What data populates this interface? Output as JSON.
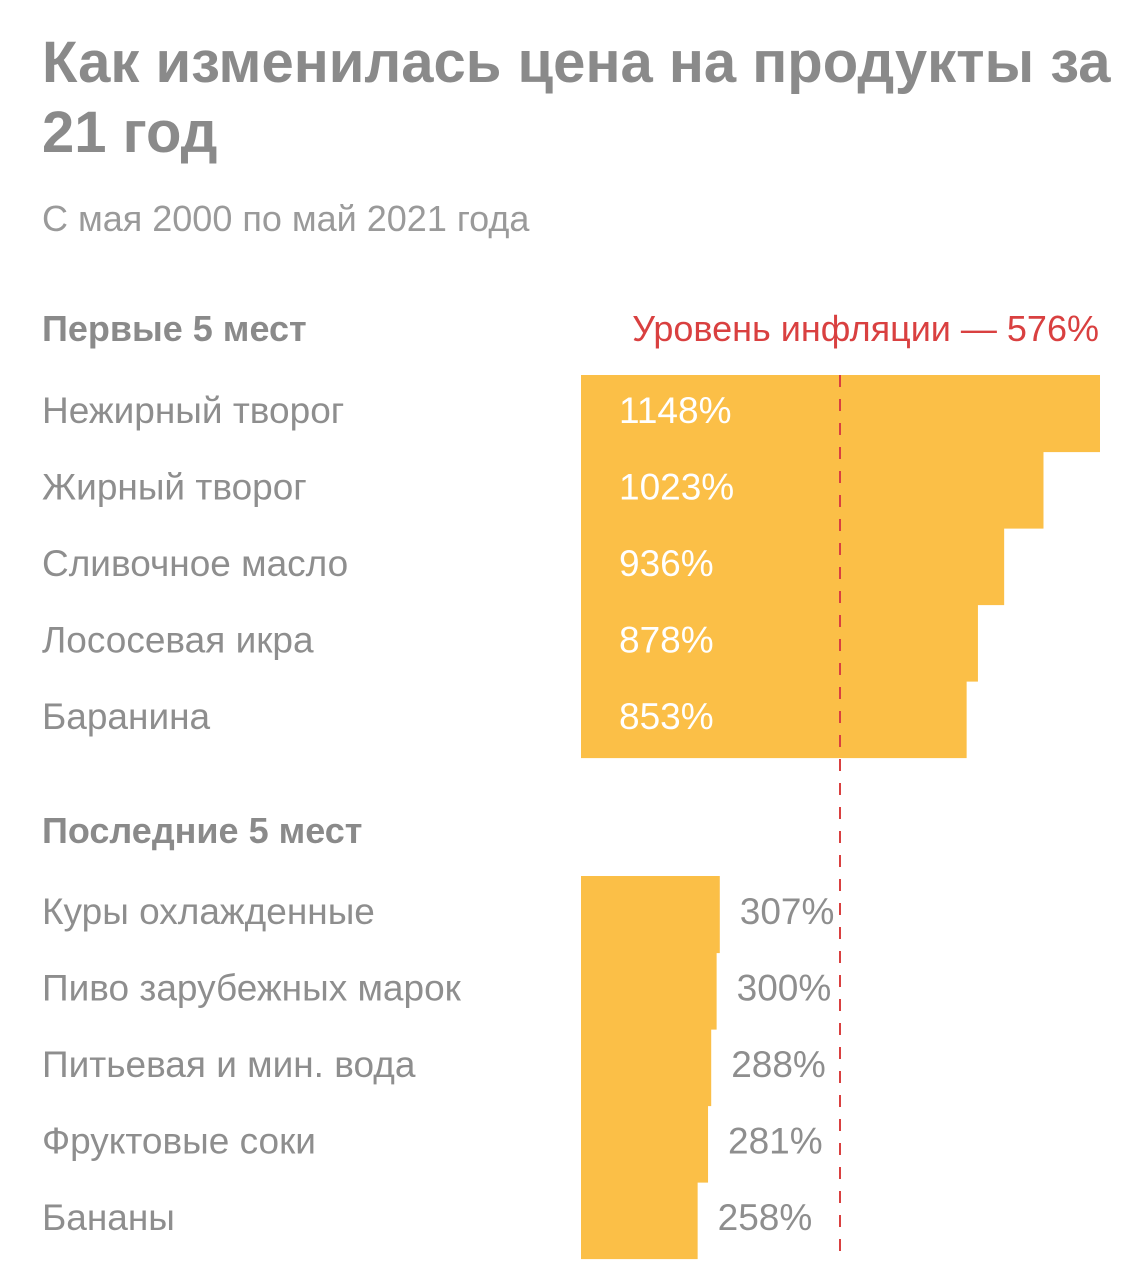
{
  "chart_data": {
    "type": "bar",
    "title": "Как изменилась цена на продукты за 21 год",
    "subtitle": "С мая 2000 по май 2021 года",
    "unit": "%",
    "reference_line": {
      "label": "Уровень инфляции — 576%",
      "value": 576
    },
    "groups": [
      {
        "name": "Первые 5 мест",
        "categories": [
          "Нежирный творог",
          "Жирный творог",
          "Сливочное масло",
          "Лососевая икра",
          "Баранина"
        ],
        "values": [
          1148,
          1023,
          936,
          878,
          853
        ],
        "labels": [
          "1148%",
          "1023%",
          "936%",
          "878%",
          "853%"
        ]
      },
      {
        "name": "Последние 5 мест",
        "categories": [
          "Куры охлажденные",
          "Пиво зарубежных марок",
          "Питьевая и мин. вода",
          "Фруктовые соки",
          "Бананы"
        ],
        "values": [
          307,
          300,
          288,
          281,
          258
        ],
        "labels": [
          "307%",
          "300%",
          "288%",
          "281%",
          "258%"
        ]
      }
    ],
    "colors": {
      "bar": "#fbbf47",
      "reference_line": "#d94040",
      "label_inside": "#ffffff",
      "label_outside": "#8e8e8e"
    }
  }
}
